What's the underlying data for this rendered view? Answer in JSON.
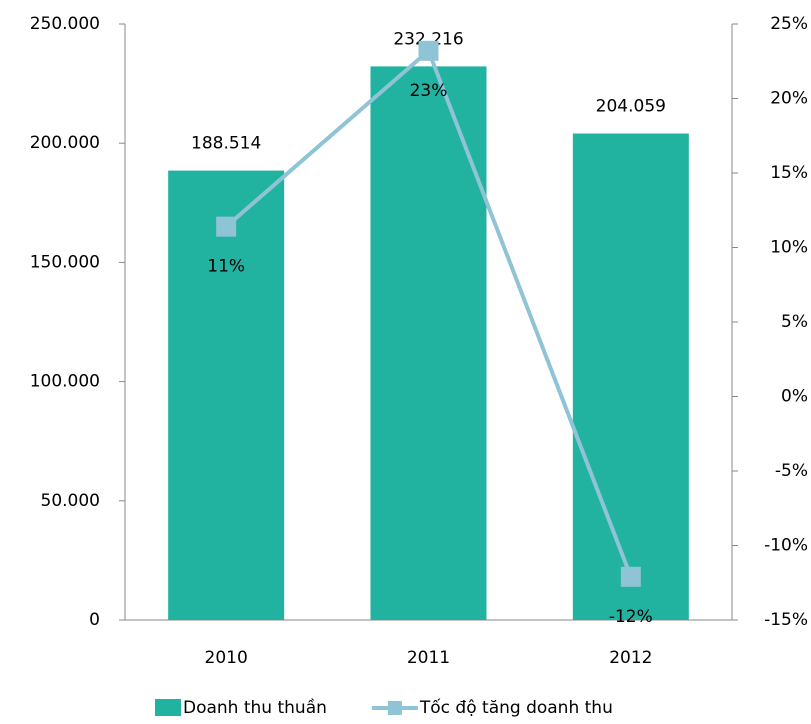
{
  "chart_data": {
    "type": "bar-line",
    "categories": [
      "2010",
      "2011",
      "2012"
    ],
    "series": [
      {
        "name": "Doanh thu thuần",
        "type": "bar",
        "color": "#22b2a0",
        "values": [
          188514,
          232216,
          204059
        ],
        "value_labels": [
          "188.514",
          "232.216",
          "204.059"
        ]
      },
      {
        "name": "Tốc độ tăng doanh thu",
        "type": "line",
        "axis": "y2",
        "color": "#8fc3d6",
        "values": [
          11.4,
          23.2,
          -12.1
        ],
        "value_labels": [
          "11%",
          "23%",
          "-12%"
        ]
      }
    ],
    "ylim": [
      0,
      250000
    ],
    "yticks": [
      0,
      {
        "value": 50000,
        "label": "50.000"
      },
      {
        "value": 100000,
        "label": "100.000"
      },
      {
        "value": 150000,
        "label": "150.000"
      },
      {
        "value": 200000,
        "label": "200.000"
      },
      {
        "value": 250000,
        "label": "250.000"
      }
    ],
    "y2lim": [
      -15,
      25
    ],
    "y2ticks": [
      {
        "value": -15,
        "label": "-15%"
      },
      {
        "value": -10,
        "label": "-10%"
      },
      {
        "value": -5,
        "label": "-5%"
      },
      {
        "value": 0,
        "label": "0%"
      },
      {
        "value": 5,
        "label": "5%"
      },
      {
        "value": 10,
        "label": "10%"
      },
      {
        "value": 15,
        "label": "15%"
      },
      {
        "value": 20,
        "label": "20%"
      },
      {
        "value": 25,
        "label": "25%"
      }
    ],
    "legend": "bottom"
  }
}
